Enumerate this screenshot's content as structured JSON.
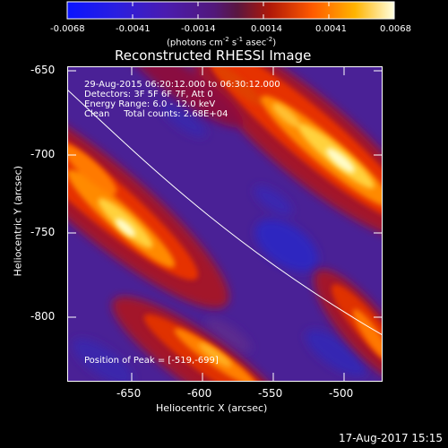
{
  "colorbar": {
    "ticks": [
      "-0.0068",
      "-0.0041",
      "-0.0014",
      "0.0014",
      "0.0041",
      "0.0068"
    ],
    "units_main": "(photons cm",
    "units_exp1": "-2",
    "units_mid1": " s",
    "units_exp2": "-1",
    "units_mid2": " asec",
    "units_exp3": "-2",
    "units_end": ")"
  },
  "title": "Reconstructed RHESSI Image",
  "info": {
    "time": "29-Aug-2015 06:20:12.000 to 06:30:12.000",
    "detectors": "Detectors: 3F 5F 6F 7F, Att 0",
    "energy": "Energy Range: 6.0 - 12.0 keV",
    "clean": "Clean     Total counts: 2.68E+04",
    "peak": "Position of Peak = [-519,-699]"
  },
  "axes": {
    "xlabel": "Heliocentric X (arcsec)",
    "ylabel": "Heliocentric Y (arcsec)",
    "xticks": [
      "-650",
      "-600",
      "-550",
      "-500"
    ],
    "yticks": [
      "-650",
      "-700",
      "-750",
      "-800"
    ]
  },
  "timestamp": "17-Aug-2017 15:15",
  "colors": {
    "background": "#000000",
    "text": "#ffffff",
    "colormap_low": "#1e2dff",
    "colormap_mid": "#5a1e9a",
    "colormap_high": "#ffffc8"
  }
}
